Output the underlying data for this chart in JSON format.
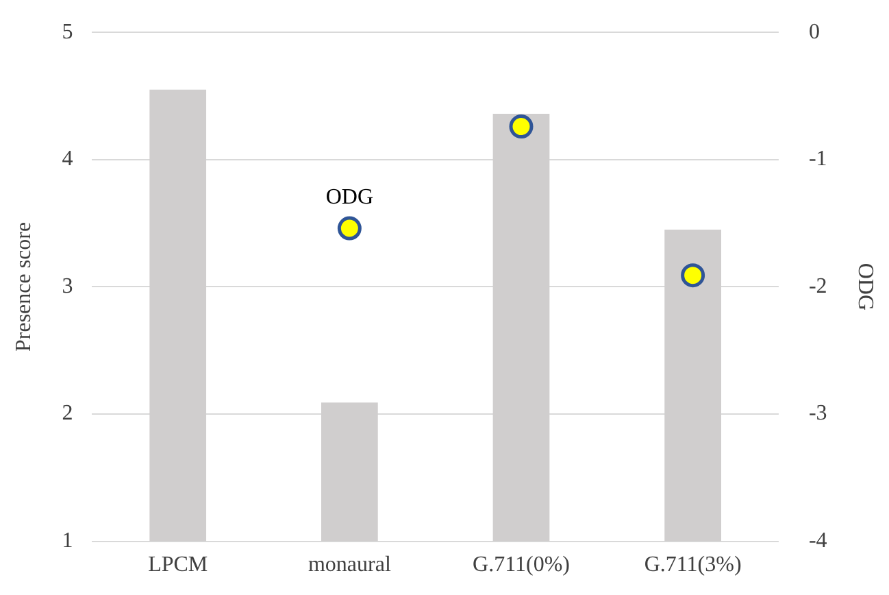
{
  "chart_data": {
    "type": "bar",
    "ylabel": "Presence score",
    "y2label": "ODG",
    "categories": [
      "LPCM",
      "monaural",
      "G.711(0%)",
      "G.711(3%)"
    ],
    "series": [
      {
        "color": "#d0cece",
        "values": [
          4.55,
          2.09,
          4.36,
          3.45
        ]
      },
      {
        "type": "scatter",
        "name": "ODG",
        "axis": "y2",
        "color": "#ffff00",
        "marker": "circle",
        "x": [
          "monaural",
          "G.711(0%)",
          "G.711(3%)"
        ],
        "values": [
          -1.54,
          -0.74,
          -1.91
        ]
      }
    ],
    "ylim": [
      1,
      5
    ],
    "yticks": [
      1,
      2,
      3,
      4,
      5
    ],
    "y2lim": [
      -4,
      0
    ],
    "y2ticks": [
      -4,
      -3,
      -2,
      -1,
      0
    ],
    "grid": "y",
    "legend": false
  }
}
